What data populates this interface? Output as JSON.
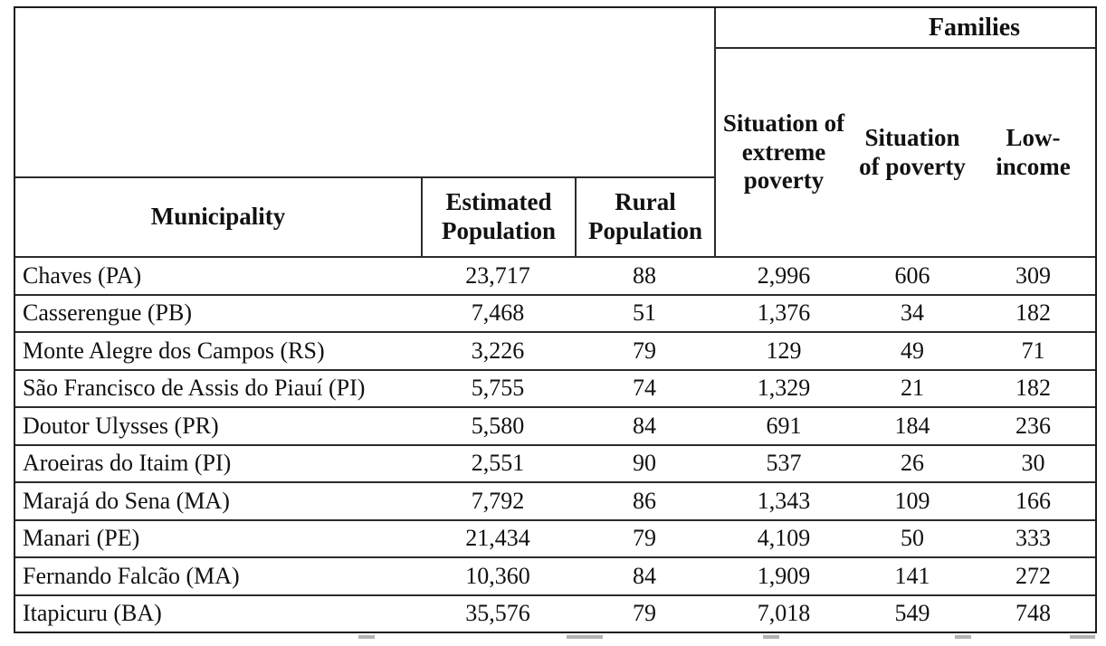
{
  "table": {
    "header": {
      "families": "Families",
      "municipality": "Municipality",
      "estimated_population": "Estimated Population",
      "rural_population": "Rural Population",
      "extreme_poverty": "Situation of extreme poverty",
      "poverty": "Situation of poverty",
      "low_income": "Low-income"
    },
    "rows": [
      {
        "name": "Chaves (PA)",
        "est_pop": "23,717",
        "rural_pop": "88",
        "extreme_poverty": "2,996",
        "poverty": "606",
        "low_income": "309"
      },
      {
        "name": "Casserengue (PB)",
        "est_pop": "7,468",
        "rural_pop": "51",
        "extreme_poverty": "1,376",
        "poverty": "34",
        "low_income": "182"
      },
      {
        "name": "Monte Alegre dos Campos (RS)",
        "est_pop": "3,226",
        "rural_pop": "79",
        "extreme_poverty": "129",
        "poverty": "49",
        "low_income": "71"
      },
      {
        "name": "São Francisco de Assis do Piauí (PI)",
        "est_pop": "5,755",
        "rural_pop": "74",
        "extreme_poverty": "1,329",
        "poverty": "21",
        "low_income": "182"
      },
      {
        "name": "Doutor Ulysses (PR)",
        "est_pop": "5,580",
        "rural_pop": "84",
        "extreme_poverty": "691",
        "poverty": "184",
        "low_income": "236"
      },
      {
        "name": "Aroeiras do Itaim (PI)",
        "est_pop": "2,551",
        "rural_pop": "90",
        "extreme_poverty": "537",
        "poverty": "26",
        "low_income": "30"
      },
      {
        "name": "Marajá do Sena (MA)",
        "est_pop": "7,792",
        "rural_pop": "86",
        "extreme_poverty": "1,343",
        "poverty": "109",
        "low_income": "166"
      },
      {
        "name": "Manari (PE)",
        "est_pop": "21,434",
        "rural_pop": "79",
        "extreme_poverty": "4,109",
        "poverty": "50",
        "low_income": "333"
      },
      {
        "name": "Fernando Falcão (MA)",
        "est_pop": "10,360",
        "rural_pop": "84",
        "extreme_poverty": "1,909",
        "poverty": "141",
        "low_income": "272"
      },
      {
        "name": "Itapicuru (BA)",
        "est_pop": "35,576",
        "rural_pop": "79",
        "extreme_poverty": "7,018",
        "poverty": "549",
        "low_income": "748"
      }
    ],
    "colors": {
      "outer_border": "#1c1c1c",
      "rule_line": "#2b2b2b",
      "text": "#111111",
      "background": "#ffffff"
    }
  }
}
